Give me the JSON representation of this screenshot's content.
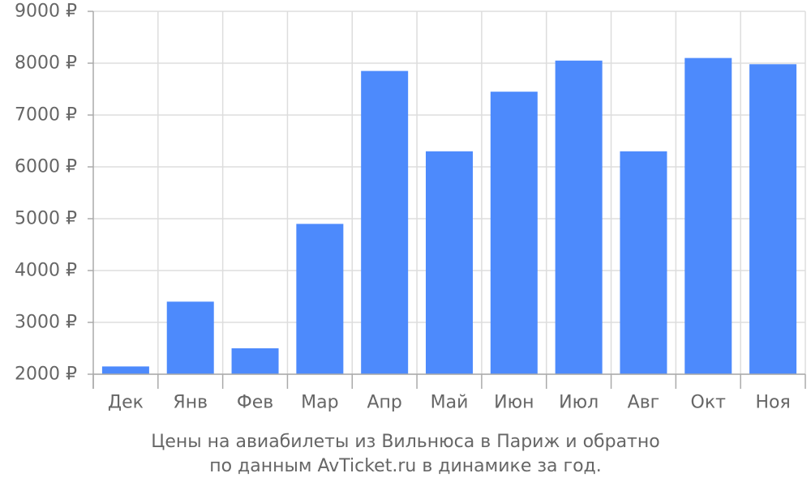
{
  "chart_data": {
    "type": "bar",
    "categories": [
      "Дек",
      "Янв",
      "Фев",
      "Мар",
      "Апр",
      "Май",
      "Июн",
      "Июл",
      "Авг",
      "Окт",
      "Ноя"
    ],
    "values": [
      2150,
      3400,
      2500,
      4900,
      7850,
      6300,
      7450,
      8050,
      6300,
      8100,
      7980
    ],
    "y_ticks": [
      "2000 ₽",
      "3000 ₽",
      "4000 ₽",
      "5000 ₽",
      "6000 ₽",
      "7000 ₽",
      "8000 ₽",
      "9000 ₽"
    ],
    "ylim": [
      2000,
      9000
    ],
    "grid": true,
    "colors": {
      "bar": "#4d8afc",
      "grid": "#dddddd",
      "axis": "#aaaaaa",
      "text": "#666666"
    }
  },
  "caption": {
    "line1": "Цены на авиабилеты из Вильнюса в Париж и обратно",
    "line2": "по данным AvTicket.ru в динамике за год."
  }
}
